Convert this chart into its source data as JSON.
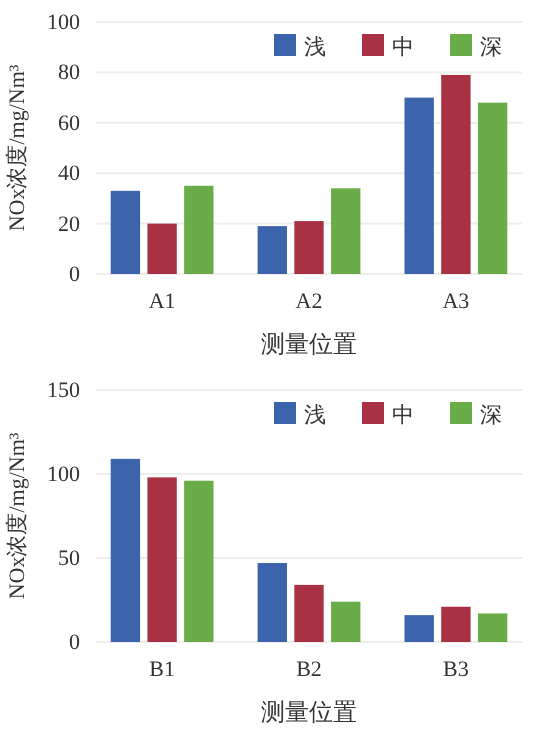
{
  "chart_data": [
    {
      "type": "bar",
      "categories": [
        "A1",
        "A2",
        "A3"
      ],
      "xlabel": "测量位置",
      "ylabel": "NOx浓度/mg/Nm³",
      "ylim": [
        0,
        100
      ],
      "yticks": [
        0,
        20,
        40,
        60,
        80,
        100
      ],
      "grid": "y",
      "legend": "top right",
      "series": [
        {
          "name": "浅",
          "color": "#3b64ad",
          "values": [
            33,
            19,
            70
          ]
        },
        {
          "name": "中",
          "color": "#a83244",
          "values": [
            20,
            21,
            79
          ]
        },
        {
          "name": "深",
          "color": "#6aac48",
          "values": [
            35,
            34,
            68
          ]
        }
      ]
    },
    {
      "type": "bar",
      "categories": [
        "B1",
        "B2",
        "B3"
      ],
      "xlabel": "测量位置",
      "ylabel": "NOx浓度/mg/Nm³",
      "ylim": [
        0,
        150
      ],
      "yticks": [
        0,
        50,
        100,
        150
      ],
      "grid": "y",
      "legend": "top right",
      "series": [
        {
          "name": "浅",
          "color": "#3b64ad",
          "values": [
            109,
            47,
            16
          ]
        },
        {
          "name": "中",
          "color": "#a83244",
          "values": [
            98,
            34,
            21
          ]
        },
        {
          "name": "深",
          "color": "#6aac48",
          "values": [
            96,
            24,
            17
          ]
        }
      ]
    }
  ]
}
